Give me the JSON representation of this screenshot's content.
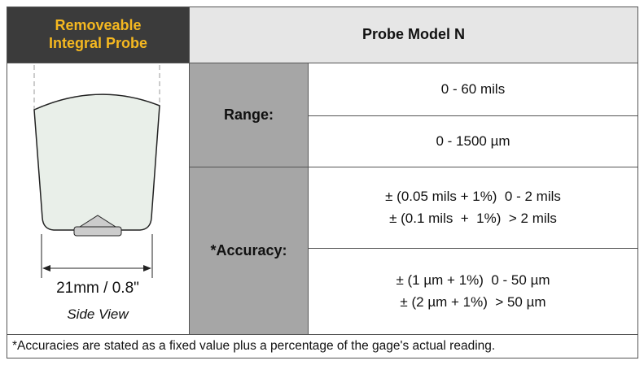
{
  "header": {
    "left_title": [
      "Removeable",
      "Integral Probe"
    ],
    "model": "Probe Model N"
  },
  "diagram": {
    "dimension": "21mm / 0.8\"",
    "view": "Side View"
  },
  "range": {
    "label": "Range:",
    "values": [
      "0 - 60 mils",
      "0 - 1500 µm"
    ]
  },
  "accuracy": {
    "label": "*Accuracy:",
    "values": [
      [
        "± (0.05 mils + 1%)  0 - 2 mils",
        "± (0.1 mils  +  1%)  > 2 mils"
      ],
      [
        "± (1 µm + 1%)  0 - 50 µm",
        "± (2 µm + 1%)  > 50 µm"
      ]
    ]
  },
  "footnote": "*Accuracies are stated as a fixed value plus a percentage of the gage's actual reading."
}
